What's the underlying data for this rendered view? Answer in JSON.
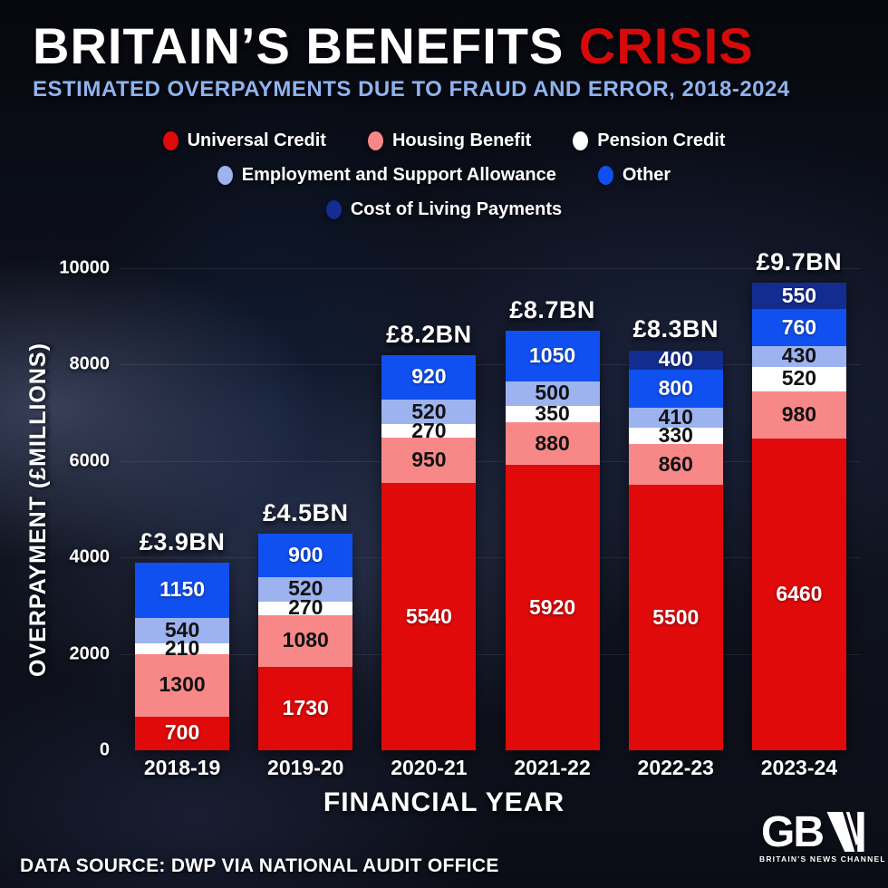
{
  "header": {
    "title_white": "BRITAIN’S BENEFITS ",
    "title_red": "CRISIS",
    "subtitle": "ESTIMATED OVERPAYMENTS DUE TO FRAUD AND ERROR, 2018-2024"
  },
  "colors": {
    "title_red": "#d60a0a",
    "subtitle_blue": "#8fb3ee",
    "universal_credit": "#e00a0a",
    "housing_benefit": "#f88888",
    "pension_credit": "#ffffff",
    "esa": "#9db3f0",
    "other": "#1150f0",
    "cost_of_living": "#132c90"
  },
  "chart_data": {
    "type": "bar",
    "stacked": true,
    "title": "BRITAIN’S BENEFITS CRISIS",
    "subtitle": "ESTIMATED OVERPAYMENTS DUE TO FRAUD AND ERROR, 2018-2024",
    "xlabel": "FINANCIAL YEAR",
    "ylabel": "OVERPAYMENT (£MILLIONS)",
    "ylim": [
      0,
      10000
    ],
    "yticks": [
      0,
      2000,
      4000,
      6000,
      8000,
      10000
    ],
    "grid": "faint horizontal",
    "legend_position": "top, three centered rows",
    "categories": [
      "2018-19",
      "2019-20",
      "2020-21",
      "2021-22",
      "2022-23",
      "2023-24"
    ],
    "totals": [
      "£3.9BN",
      "£4.5BN",
      "£8.2BN",
      "£8.7BN",
      "£8.3BN",
      "£9.7BN"
    ],
    "series": [
      {
        "name": "Universal Credit",
        "color": "#e00a0a",
        "text": "light",
        "values": [
          700,
          1730,
          5540,
          5920,
          5500,
          6460
        ]
      },
      {
        "name": "Housing Benefit",
        "color": "#f88888",
        "text": "dark",
        "values": [
          1300,
          1080,
          950,
          880,
          860,
          980
        ]
      },
      {
        "name": "Pension Credit",
        "color": "#ffffff",
        "text": "dark",
        "values": [
          210,
          270,
          270,
          350,
          330,
          520
        ]
      },
      {
        "name": "Employment and Support Allowance",
        "color": "#9db3f0",
        "text": "dark",
        "values": [
          540,
          520,
          520,
          500,
          410,
          430
        ]
      },
      {
        "name": "Other",
        "color": "#1150f0",
        "text": "light",
        "values": [
          1150,
          900,
          920,
          1050,
          800,
          760
        ]
      },
      {
        "name": "Cost of Living Payments",
        "color": "#132c90",
        "text": "light",
        "values": [
          0,
          0,
          0,
          0,
          400,
          550
        ]
      }
    ],
    "legend_rows": [
      [
        0,
        1,
        2
      ],
      [
        3,
        4
      ],
      [
        5
      ]
    ]
  },
  "footer": {
    "source": "DATA SOURCE: DWP VIA NATIONAL AUDIT OFFICE",
    "logo_text": "GB",
    "logo_caption": "BRITAIN'S NEWS CHANNEL"
  }
}
